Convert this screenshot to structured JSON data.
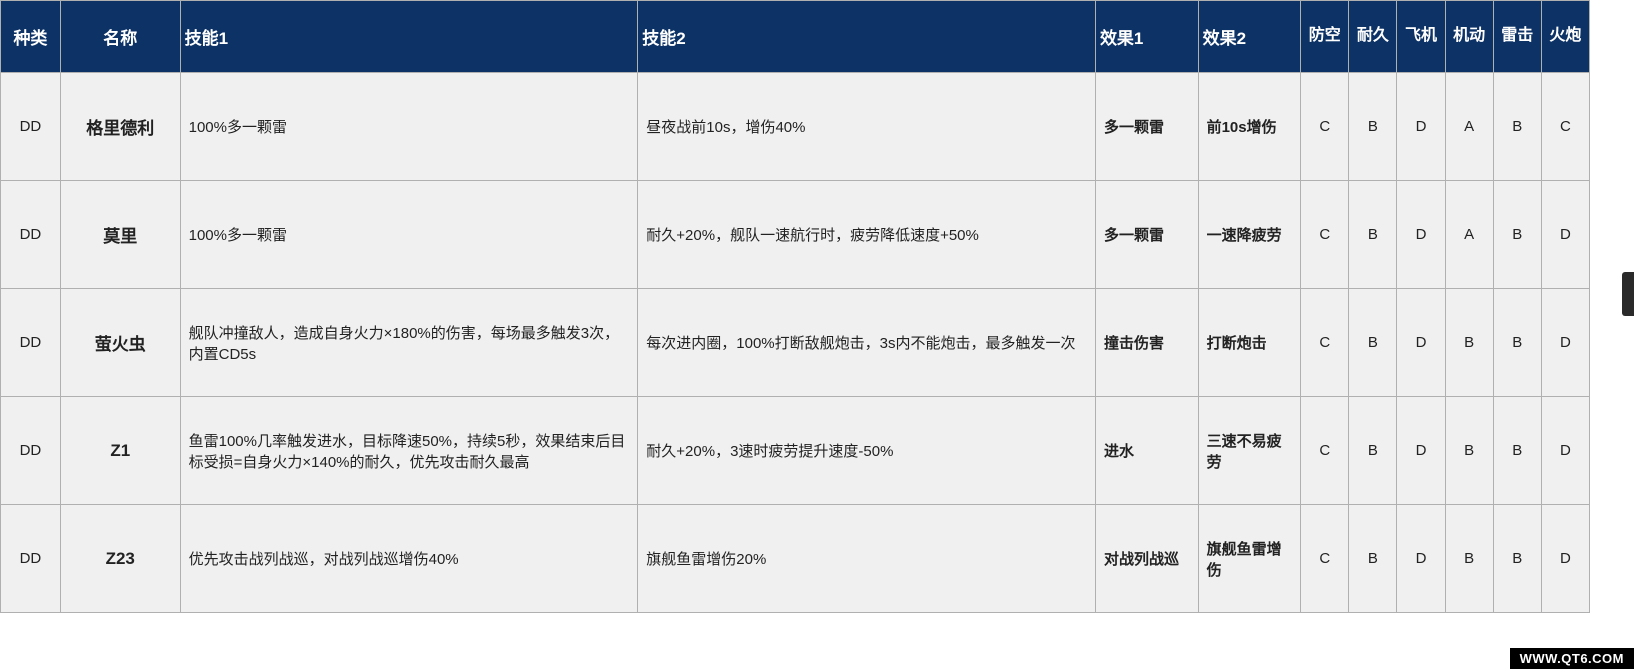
{
  "table": {
    "header_bg": "#0d3266",
    "header_fg": "#ffffff",
    "row_bg": "#f0f0f0",
    "border_color": "#b0b0b0",
    "columns": [
      {
        "key": "type",
        "label": "种类"
      },
      {
        "key": "name",
        "label": "名称"
      },
      {
        "key": "skill1",
        "label": "技能1"
      },
      {
        "key": "skill2",
        "label": "技能2"
      },
      {
        "key": "effect1",
        "label": "效果1"
      },
      {
        "key": "effect2",
        "label": "效果2"
      },
      {
        "key": "stat_aa",
        "label": "防空"
      },
      {
        "key": "stat_hp",
        "label": "耐久"
      },
      {
        "key": "stat_air",
        "label": "飞机"
      },
      {
        "key": "stat_mob",
        "label": "机动"
      },
      {
        "key": "stat_torp",
        "label": "雷击"
      },
      {
        "key": "stat_gun",
        "label": "火炮"
      }
    ],
    "rows": [
      {
        "type": "DD",
        "name": "格里德利",
        "skill1": "100%多一颗雷",
        "skill2": "昼夜战前10s，增伤40%",
        "effect1": "多一颗雷",
        "effect2": "前10s增伤",
        "stats": [
          "C",
          "B",
          "D",
          "A",
          "B",
          "C"
        ]
      },
      {
        "type": "DD",
        "name": "莫里",
        "skill1": "100%多一颗雷",
        "skill2": "耐久+20%，舰队一速航行时，疲劳降低速度+50%",
        "effect1": "多一颗雷",
        "effect2": "一速降疲劳",
        "stats": [
          "C",
          "B",
          "D",
          "A",
          "B",
          "D"
        ]
      },
      {
        "type": "DD",
        "name": "萤火虫",
        "skill1": "舰队冲撞敌人，造成自身火力×180%的伤害，每场最多触发3次，内置CD5s",
        "skill2": "每次进内圈，100%打断敌舰炮击，3s内不能炮击，最多触发一次",
        "effect1": "撞击伤害",
        "effect2": "打断炮击",
        "stats": [
          "C",
          "B",
          "D",
          "B",
          "B",
          "D"
        ]
      },
      {
        "type": "DD",
        "name": "Z1",
        "skill1": "鱼雷100%几率触发进水，目标降速50%，持续5秒，效果结束后目标受损=自身火力×140%的耐久，优先攻击耐久最高",
        "skill2": "耐久+20%，3速时疲劳提升速度-50%",
        "effect1": "进水",
        "effect2": "三速不易疲劳",
        "stats": [
          "C",
          "B",
          "D",
          "B",
          "B",
          "D"
        ]
      },
      {
        "type": "DD",
        "name": "Z23",
        "skill1": "优先攻击战列战巡，对战列战巡增伤40%",
        "skill2": "旗舰鱼雷增伤20%",
        "effect1": "对战列战巡",
        "effect2": "旗舰鱼雷增伤",
        "stats": [
          "C",
          "B",
          "D",
          "B",
          "B",
          "D"
        ]
      }
    ]
  },
  "watermark": "WWW.QT6.COM"
}
